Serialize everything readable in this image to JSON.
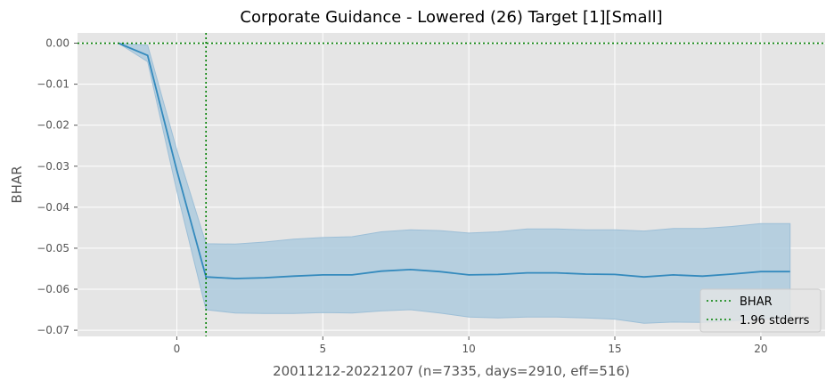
{
  "chart_data": {
    "type": "line",
    "title": "Corporate Guidance - Lowered (26) Target [1][Small]",
    "xlabel": "20011212-20221207 (n=7335, days=2910, eff=516)",
    "ylabel": "BHAR",
    "xlim": [
      -3.4,
      22.2
    ],
    "ylim": [
      -0.0715,
      0.0025
    ],
    "xticks": [
      0,
      5,
      10,
      15,
      20
    ],
    "xtick_labels": [
      "0",
      "5",
      "10",
      "15",
      "20"
    ],
    "yticks": [
      0.0,
      -0.01,
      -0.02,
      -0.03,
      -0.04,
      -0.05,
      -0.06,
      -0.07
    ],
    "ytick_labels": [
      "0.00",
      "−0.01",
      "−0.02",
      "−0.03",
      "−0.04",
      "−0.05",
      "−0.06",
      "−0.07"
    ],
    "grid": true,
    "legend_position": "lower-right",
    "legend": [
      {
        "label": "BHAR",
        "style": "dotted",
        "color": "#008000"
      },
      {
        "label": "1.96 stderrs",
        "style": "dotted",
        "color": "#008000"
      }
    ],
    "reference_lines": {
      "hline_y": 0.0,
      "vline_x": 1,
      "color": "#008000"
    },
    "series": [
      {
        "x": [
          -2,
          -1,
          0,
          1,
          2,
          3,
          4,
          5,
          6,
          7,
          8,
          9,
          10,
          11,
          12,
          13,
          14,
          15,
          16,
          17,
          18,
          19,
          20,
          21
        ],
        "y": [
          0.0,
          -0.003,
          -0.031,
          -0.057,
          -0.0574,
          -0.0572,
          -0.0568,
          -0.0565,
          -0.0565,
          -0.0556,
          -0.0552,
          -0.0557,
          -0.0565,
          -0.0564,
          -0.056,
          -0.056,
          -0.0563,
          -0.0564,
          -0.057,
          -0.0565,
          -0.0568,
          -0.0563,
          -0.0557,
          -0.0557
        ],
        "lower": [
          0.0,
          -0.0045,
          -0.036,
          -0.065,
          -0.0658,
          -0.0659,
          -0.0659,
          -0.0657,
          -0.0658,
          -0.0653,
          -0.065,
          -0.0658,
          -0.0668,
          -0.067,
          -0.0668,
          -0.0668,
          -0.067,
          -0.0673,
          -0.0683,
          -0.068,
          -0.0681,
          -0.0677,
          -0.0672,
          -0.0672
        ],
        "upper": [
          0.0,
          -0.0005,
          -0.026,
          -0.0489,
          -0.049,
          -0.0485,
          -0.0478,
          -0.0474,
          -0.0472,
          -0.046,
          -0.0455,
          -0.0457,
          -0.0463,
          -0.046,
          -0.0453,
          -0.0453,
          -0.0455,
          -0.0455,
          -0.0458,
          -0.0452,
          -0.0452,
          -0.0447,
          -0.044,
          -0.044
        ],
        "line_color": "#348abd",
        "band_color": "#aecbde"
      }
    ],
    "colors": {
      "plot_bg": "#e5e5e5",
      "grid": "#ffffff",
      "reference": "#008000"
    }
  }
}
